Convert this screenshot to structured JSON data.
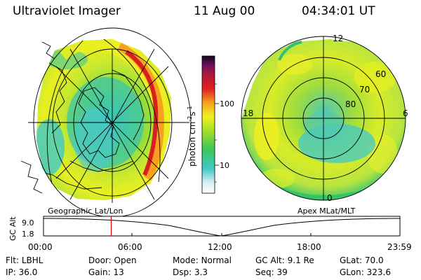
{
  "header": {
    "instrument": "Ultraviolet Imager",
    "date": "11 Aug 00",
    "time": "04:34:01 UT"
  },
  "colorbar": {
    "label": "photon cm",
    "label_sup1": "-2",
    "label_mid": "s",
    "label_sup2": "-1",
    "tick_100": "100",
    "tick_10": "10"
  },
  "left_map": {
    "caption": "Geographic Lat/Lon"
  },
  "right_map": {
    "caption": "Apex MLat/MLT",
    "lat_labels": [
      "60",
      "70",
      "80"
    ],
    "mlt_labels": {
      "top": "12",
      "left": "18",
      "right": "6",
      "bottom": "0"
    }
  },
  "altitude_plot": {
    "ylabel": "GC Alt",
    "y_top": "9.0",
    "y_bottom": "1.8",
    "x_ticks": [
      "00:00",
      "06:00",
      "12:00",
      "18:00",
      "23:59"
    ],
    "current_time_fraction": 0.19
  },
  "params": {
    "row1": [
      {
        "label": "Flt:",
        "value": "LBHL"
      },
      {
        "label": "Door:",
        "value": "Open"
      },
      {
        "label": "Mode:",
        "value": "Normal"
      },
      {
        "label": "GC Alt:",
        "value": "9.1 Re"
      },
      {
        "label": "GLat:",
        "value": "70.0"
      }
    ],
    "row2": [
      {
        "label": "IP:",
        "value": "36.0"
      },
      {
        "label": "Gain:",
        "value": "13"
      },
      {
        "label": "Dsp:",
        "value": "3.3"
      },
      {
        "label": "Seq:",
        "value": "39"
      },
      {
        "label": "GLon:",
        "value": "323.6"
      }
    ]
  },
  "colors": {
    "background": "#ffffff",
    "marker": "#e00000"
  }
}
